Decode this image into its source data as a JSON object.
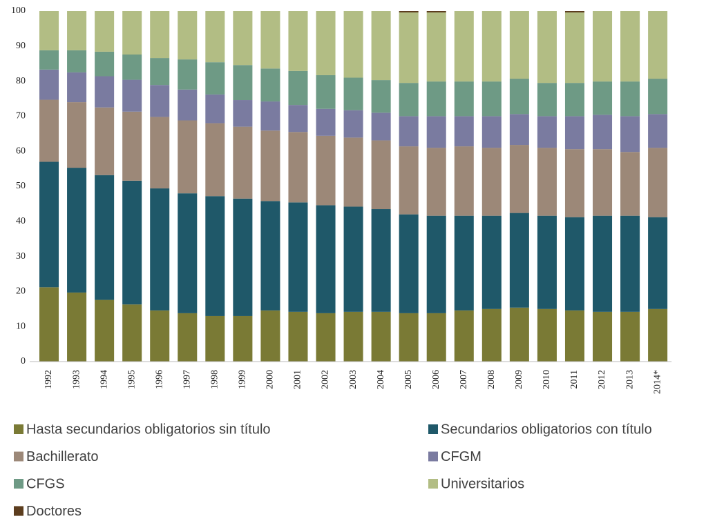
{
  "chart_data": {
    "type": "stacked_bar",
    "categories": [
      "1992",
      "1993",
      "1994",
      "1995",
      "1996",
      "1997",
      "1998",
      "1999",
      "2000",
      "2001",
      "2002",
      "2003",
      "2004",
      "2005",
      "2006",
      "2007",
      "2008",
      "2009",
      "2010",
      "2011",
      "2012",
      "2013",
      "2014*"
    ],
    "series": [
      {
        "name": "Hasta secundarios obligatorios sin título",
        "color": "#7a7a35",
        "values": [
          21.2,
          19.7,
          17.6,
          16.3,
          14.6,
          13.8,
          13.0,
          13.0,
          14.6,
          14.2,
          13.8,
          14.2,
          14.2,
          13.8,
          13.8,
          14.6,
          15.0,
          15.4,
          15.0,
          14.6,
          14.2,
          14.2,
          15.0
        ]
      },
      {
        "name": "Secundarios obligatorios con título",
        "color": "#1f5869",
        "values": [
          35.8,
          35.6,
          35.6,
          35.3,
          34.8,
          34.2,
          34.2,
          33.5,
          31.2,
          31.2,
          30.8,
          30.0,
          29.3,
          28.2,
          27.8,
          27.0,
          26.6,
          27.0,
          26.6,
          26.6,
          27.4,
          27.4,
          26.2
        ]
      },
      {
        "name": "Bachillerato",
        "color": "#9c8878",
        "values": [
          17.7,
          18.7,
          19.3,
          19.7,
          20.4,
          20.8,
          20.8,
          20.5,
          20.1,
          20.1,
          19.8,
          19.7,
          19.6,
          19.4,
          19.4,
          19.8,
          19.4,
          19.4,
          19.4,
          19.4,
          19.0,
          18.2,
          19.8
        ]
      },
      {
        "name": "CFGM",
        "color": "#7a7ba0",
        "values": [
          8.6,
          8.5,
          8.9,
          9.1,
          9.1,
          8.8,
          8.2,
          7.6,
          8.3,
          7.7,
          7.7,
          7.8,
          7.9,
          8.6,
          9.0,
          8.6,
          9.0,
          8.8,
          9.0,
          9.4,
          9.8,
          10.2,
          9.6
        ]
      },
      {
        "name": "CFGS",
        "color": "#6e9a85",
        "values": [
          5.5,
          6.3,
          7.0,
          7.2,
          7.7,
          8.6,
          9.2,
          10.0,
          9.4,
          9.7,
          9.6,
          9.3,
          9.3,
          9.5,
          9.9,
          9.9,
          9.9,
          10.1,
          9.5,
          9.5,
          9.5,
          9.9,
          10.1
        ]
      },
      {
        "name": "Universitarios",
        "color": "#b2bd84",
        "values": [
          11.2,
          11.2,
          11.6,
          12.4,
          13.4,
          13.8,
          14.6,
          15.4,
          16.4,
          17.1,
          18.3,
          19.0,
          19.7,
          20.1,
          19.7,
          20.1,
          20.1,
          19.3,
          20.5,
          20.1,
          20.1,
          20.1,
          19.3
        ]
      },
      {
        "name": "Doctores",
        "color": "#5c3d1e",
        "values": [
          0,
          0,
          0,
          0,
          0,
          0,
          0,
          0,
          0,
          0,
          0,
          0,
          0,
          0.4,
          0.4,
          0,
          0,
          0,
          0,
          0.4,
          0,
          0,
          0
        ]
      }
    ],
    "ylim": [
      0,
      100
    ],
    "yticks": [
      0,
      10,
      20,
      30,
      40,
      50,
      60,
      70,
      80,
      90,
      100
    ],
    "grid": false
  }
}
